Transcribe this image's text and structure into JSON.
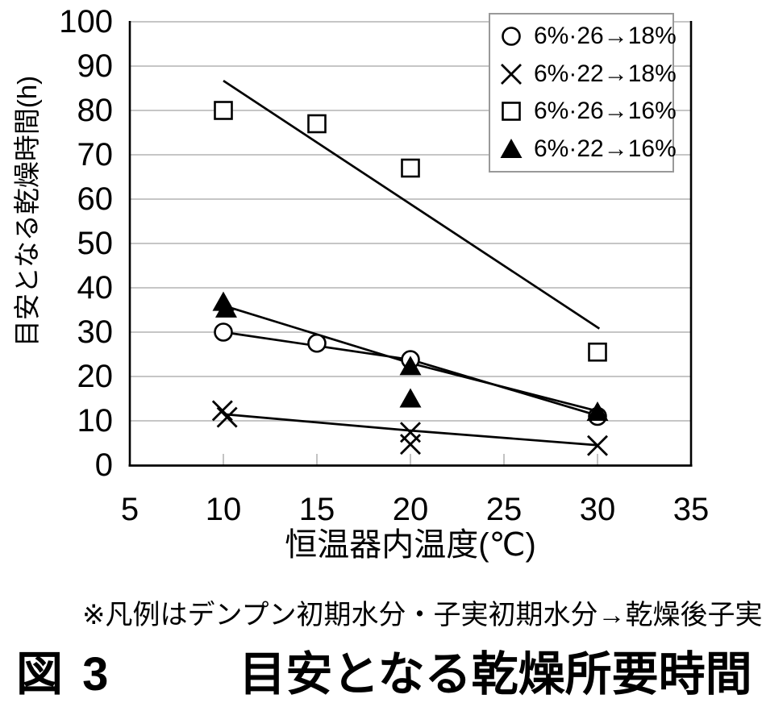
{
  "figure": {
    "note": "※凡例はデンプン初期水分・子実初期水分→乾燥後子実水分",
    "figure_label": "図 3",
    "figure_title": "目安となる乾燥所要時間"
  },
  "chart_data": {
    "type": "scatter",
    "title": "図3 目安となる乾燥所要時間",
    "xlabel": "恒温器内温度(℃)",
    "ylabel": "目安となる乾燥時間(h)",
    "xlim": [
      5,
      35
    ],
    "ylim": [
      0,
      100
    ],
    "xticks": [
      5,
      10,
      15,
      20,
      25,
      30,
      35
    ],
    "yticks": [
      0,
      10,
      20,
      30,
      40,
      50,
      60,
      70,
      80,
      90,
      100
    ],
    "grid": "horizontal",
    "legend_position": "top-right",
    "note": "※凡例はデンプン初期水分・子実初期水分→乾燥後子実水分",
    "colors": {
      "foreground": "#000000",
      "background": "#ffffff",
      "gridline": "#b4b4b4",
      "legend_border": "#999999"
    },
    "series": [
      {
        "name": "6%·26→18%",
        "marker": "circle",
        "points": [
          [
            10,
            30
          ],
          [
            15,
            27.5
          ],
          [
            20,
            23.8
          ],
          [
            30,
            11
          ]
        ],
        "trend": [
          [
            10,
            30
          ],
          [
            20,
            23.8
          ],
          [
            30,
            11.2
          ]
        ]
      },
      {
        "name": "6%·22→18%",
        "marker": "x",
        "points": [
          [
            9.95,
            12.3
          ],
          [
            10.2,
            10.8
          ],
          [
            20,
            7.4
          ],
          [
            20,
            4.7
          ],
          [
            30,
            4.4
          ]
        ],
        "trend": [
          [
            10,
            11.5
          ],
          [
            20,
            7.8
          ],
          [
            30,
            4.5
          ]
        ]
      },
      {
        "name": "6%·26→16%",
        "marker": "square",
        "points": [
          [
            10,
            80
          ],
          [
            15,
            77
          ],
          [
            20,
            67
          ],
          [
            30,
            25.5
          ]
        ],
        "trend": [
          [
            10,
            86.7
          ],
          [
            30.1,
            30.8
          ]
        ]
      },
      {
        "name": "6%·22→16%",
        "marker": "triangle",
        "points": [
          [
            10,
            36.8
          ],
          [
            10.15,
            35.3
          ],
          [
            20,
            22.3
          ],
          [
            20,
            15
          ],
          [
            30,
            12
          ]
        ],
        "trend": [
          [
            10,
            36
          ],
          [
            20,
            23
          ],
          [
            30,
            12.2
          ]
        ]
      }
    ]
  }
}
